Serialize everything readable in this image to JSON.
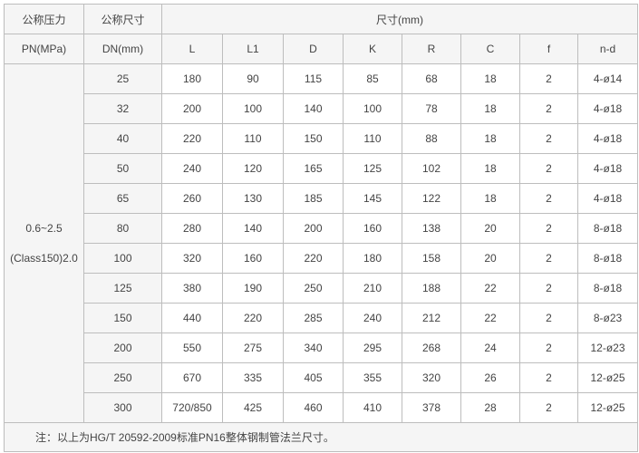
{
  "header": {
    "pn_label_cn": "公称压力",
    "pn_label": "PN(MPa)",
    "dn_label_cn": "公称尺寸",
    "dn_label": "DN(mm)",
    "dims_label": "尺寸(mm)",
    "columns": [
      "L",
      "L1",
      "D",
      "K",
      "R",
      "C",
      "f",
      "n-d"
    ]
  },
  "pressure": {
    "line1": "0.6~2.5",
    "line2": "(Class150)2.0"
  },
  "rows": [
    [
      "25",
      "180",
      "90",
      "115",
      "85",
      "68",
      "18",
      "2",
      "4-ø14"
    ],
    [
      "32",
      "200",
      "100",
      "140",
      "100",
      "78",
      "18",
      "2",
      "4-ø18"
    ],
    [
      "40",
      "220",
      "110",
      "150",
      "110",
      "88",
      "18",
      "2",
      "4-ø18"
    ],
    [
      "50",
      "240",
      "120",
      "165",
      "125",
      "102",
      "18",
      "2",
      "4-ø18"
    ],
    [
      "65",
      "260",
      "130",
      "185",
      "145",
      "122",
      "18",
      "2",
      "4-ø18"
    ],
    [
      "80",
      "280",
      "140",
      "200",
      "160",
      "138",
      "20",
      "2",
      "8-ø18"
    ],
    [
      "100",
      "320",
      "160",
      "220",
      "180",
      "158",
      "20",
      "2",
      "8-ø18"
    ],
    [
      "125",
      "380",
      "190",
      "250",
      "210",
      "188",
      "22",
      "2",
      "8-ø18"
    ],
    [
      "150",
      "440",
      "220",
      "285",
      "240",
      "212",
      "22",
      "2",
      "8-ø23"
    ],
    [
      "200",
      "550",
      "275",
      "340",
      "295",
      "268",
      "24",
      "2",
      "12-ø23"
    ],
    [
      "250",
      "670",
      "335",
      "405",
      "355",
      "320",
      "26",
      "2",
      "12-ø25"
    ],
    [
      "300",
      "720/850",
      "425",
      "460",
      "410",
      "378",
      "28",
      "2",
      "12-ø25"
    ]
  ],
  "note": "注：以上为HG/T 20592-2009标准PN16整体钢制管法兰尺寸。"
}
